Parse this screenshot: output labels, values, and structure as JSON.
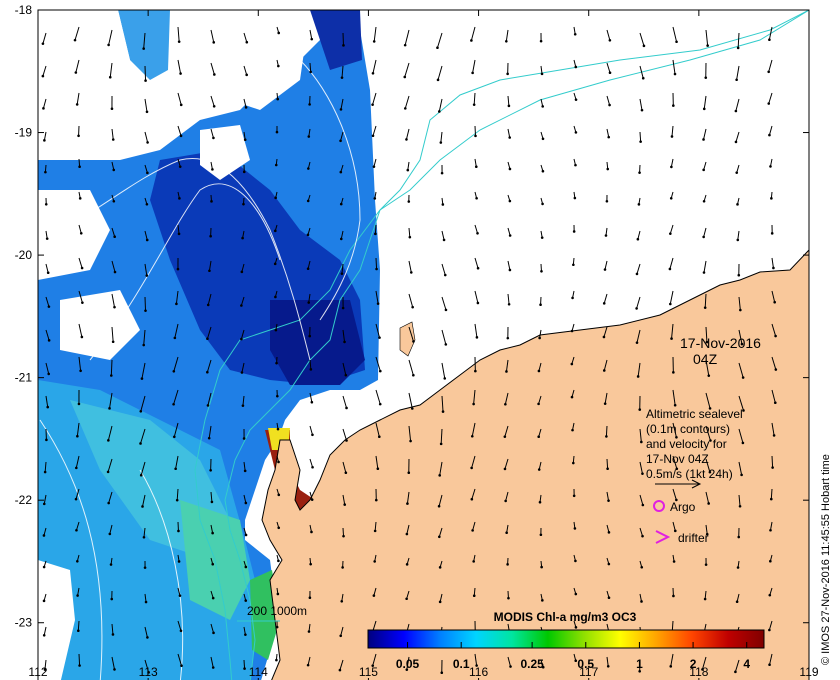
{
  "map": {
    "lon_range": [
      112,
      119
    ],
    "lat_range": [
      -23.5,
      -18
    ],
    "lon_ticks": [
      "112",
      "113",
      "114",
      "115",
      "116",
      "117",
      "118",
      "119"
    ],
    "lat_ticks": [
      "-18",
      "-19",
      "-20",
      "-21",
      "-22",
      "-23"
    ],
    "land_color": "#f9c89b",
    "colors": {
      "land": "#f9c89b",
      "contour": "#33cccc",
      "sealevel": "#ffffff",
      "argo": "#e020e0",
      "drifter": "#e020e0"
    }
  },
  "annotations": {
    "date": "17-Nov-2016",
    "time": "04Z",
    "legend_lines": [
      "Altimetric sealevel",
      "(0.1m contours)",
      "and velocity for",
      "17-Nov 04Z",
      "0.5m/s (1kt 24h)"
    ],
    "argo_label": "Argo",
    "drifter_label": "drifter",
    "depth_label": "200  1000m",
    "credit": "© IMOS 27-Nov-2016 11:45:55 Hobart time"
  },
  "colorbar": {
    "title": "MODIS Chl-a mg/m3 OC3",
    "ticks": [
      "0.05",
      "0.1",
      "0.25",
      "0.5",
      "1",
      "2",
      "4"
    ],
    "tick_values": [
      0.05,
      0.1,
      0.25,
      0.5,
      1,
      2,
      4
    ],
    "range": [
      0.03,
      5
    ],
    "stops": [
      "#00007f",
      "#0000ff",
      "#007fff",
      "#00d4ff",
      "#00e5a0",
      "#00c800",
      "#8fe000",
      "#ffff00",
      "#ffa500",
      "#ff4500",
      "#c00000",
      "#800000"
    ]
  }
}
